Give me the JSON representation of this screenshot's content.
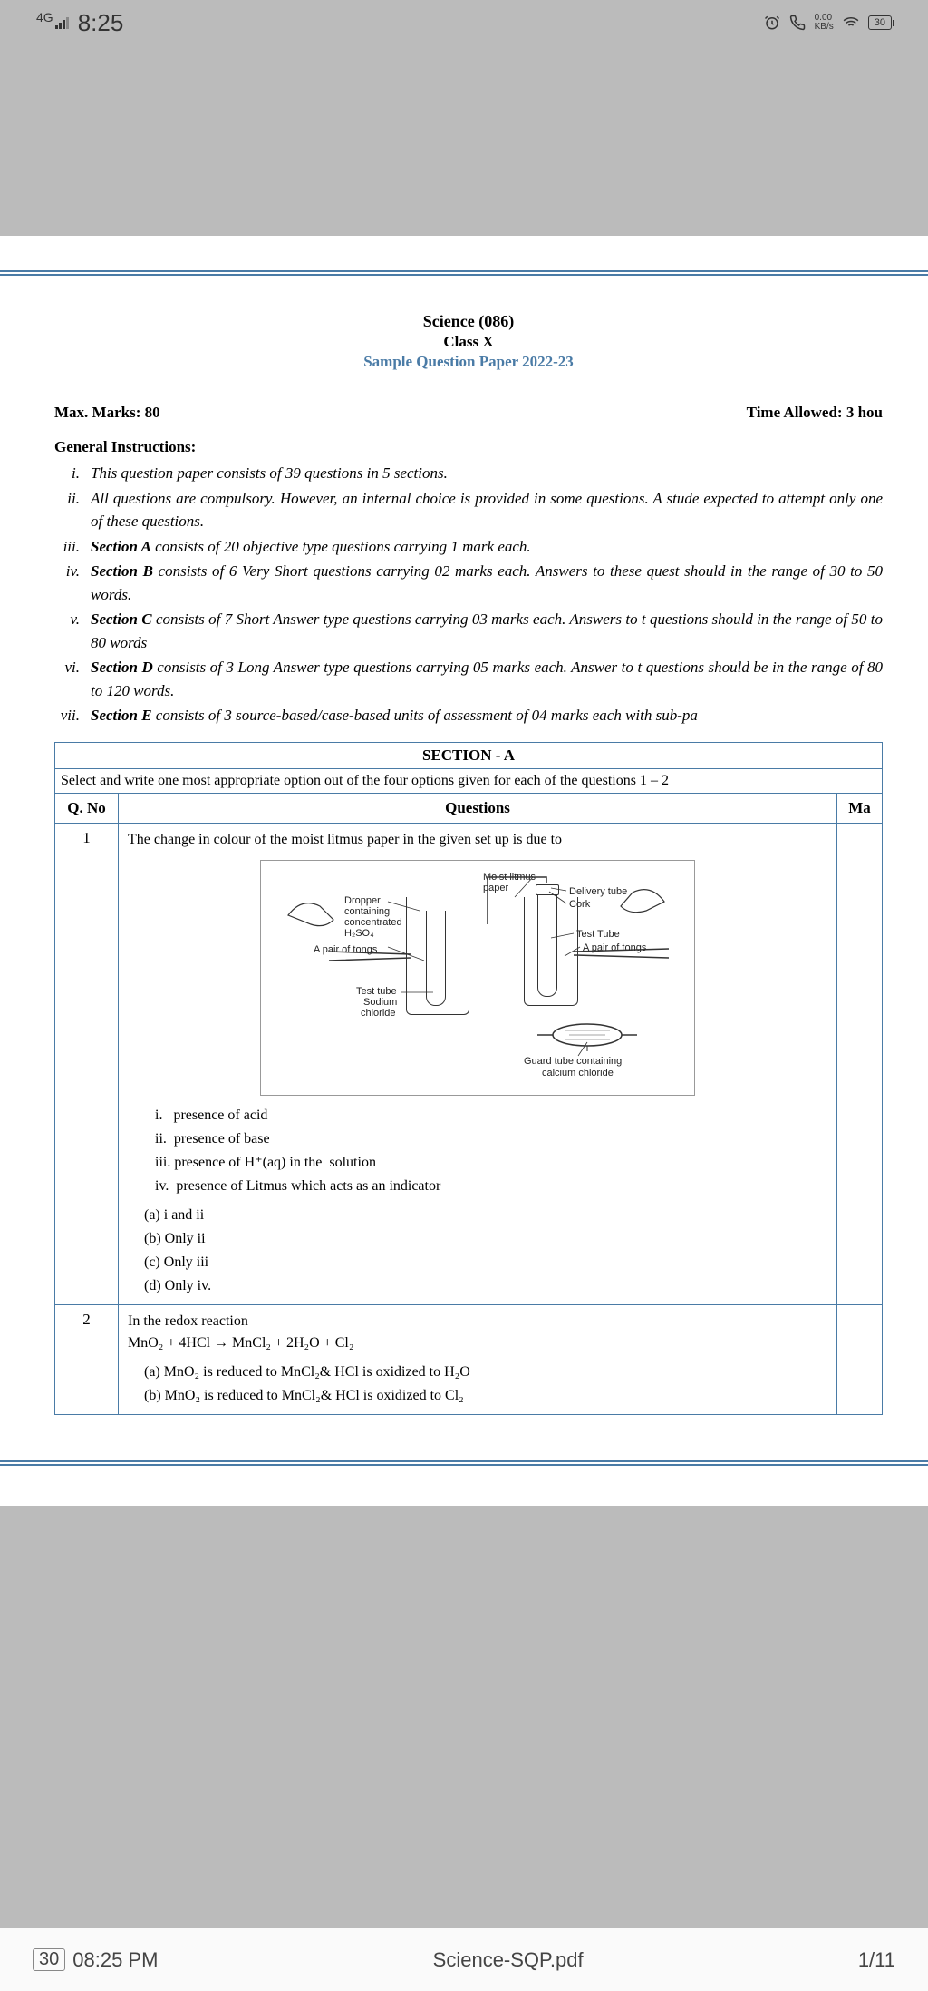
{
  "status": {
    "network": "4G",
    "time": "8:25",
    "speed_top": "0.00",
    "speed_unit": "KB/s",
    "battery": "30"
  },
  "paper": {
    "title": "Science (086)",
    "class": "Class X",
    "sample": "Sample Question Paper 2022-23",
    "max_marks": "Max. Marks: 80",
    "time_allowed": "Time Allowed: 3 hou",
    "gen_head": "General Instructions:",
    "instructions": [
      {
        "n": "i.",
        "t": "This question paper consists of 39 questions in 5 sections."
      },
      {
        "n": "ii.",
        "t": "All questions are compulsory. However, an internal choice is provided in some questions. A stude expected to attempt only one of these questions."
      },
      {
        "n": "iii.",
        "t": "<b>Section A</b> consists of 20 objective type questions carrying 1 mark each."
      },
      {
        "n": "iv.",
        "t": "<b>Section B</b> consists of 6 Very Short questions carrying 02 marks each. Answers to these quest should in the range of 30 to 50 words."
      },
      {
        "n": "v.",
        "t": "<b>Section C</b> consists of 7 Short Answer type questions carrying 03 marks each. Answers to t questions should in the range of 50 to 80 words"
      },
      {
        "n": "vi.",
        "t": "<b>Section D</b> consists of 3 Long Answer type questions carrying 05 marks each. Answer to t questions should be in the range of 80 to 120 words."
      },
      {
        "n": "vii.",
        "t": "<b>Section E</b> consists of 3 source-based/case-based units of assessment of 04 marks each with sub-pa"
      }
    ],
    "section_a": "SECTION - A",
    "section_a_desc": "Select and write one most appropriate option out of the four options given for each of the questions 1 – 2",
    "qno_head": "Q. No",
    "questions_head": "Questions",
    "marks_head": "Ma",
    "q1_no": "1",
    "q1_text": "The change in colour of the moist litmus paper in the given set up is due to",
    "q1_roman": [
      "i.   presence of acid",
      "ii.  presence of base",
      "iii. presence of H⁺(aq) in the  solution",
      "iv.  presence of Litmus which acts as an indicator"
    ],
    "q1_options": [
      "(a)  i and ii",
      "(b)  Only ii",
      "(c)  Only iii",
      "(d)  Only iv."
    ],
    "q2_no": "2",
    "q2_text": "In the redox reaction",
    "q2_eq": "MnO₂ + 4HCl → MnCl₂ + 2H₂O + Cl₂",
    "q2_options": [
      "(a)  MnO₂ is reduced to MnCl₂& HCl is oxidized to H₂O",
      "(b)  MnO₂ is reduced to MnCl₂& HCl is oxidized to Cl₂"
    ]
  },
  "diagram": {
    "moist": "Moist litmus",
    "paper": "paper",
    "delivery": "Delivery tube",
    "cork": "Cork",
    "dropper": "Dropper",
    "containing": "containing",
    "concentrated": "concentrated",
    "h2so4": "H₂SO₄",
    "tongs1": "A pair of tongs",
    "testtube1": "Test tube",
    "sodium": "Sodium",
    "chloride": "chloride",
    "testtube2": "Test Tube",
    "tongs2": "A pair of tongs",
    "guard": "Guard tube containing",
    "calcium": "calcium chloride"
  },
  "nav": {
    "page_box": "30",
    "page_time": "08:25 PM",
    "filename": "Science-SQP.pdf",
    "page_of": "1/11"
  },
  "colors": {
    "rule": "#4a7ba6",
    "bg_gray": "#bbbbbb",
    "link": "#4a7ba6"
  }
}
